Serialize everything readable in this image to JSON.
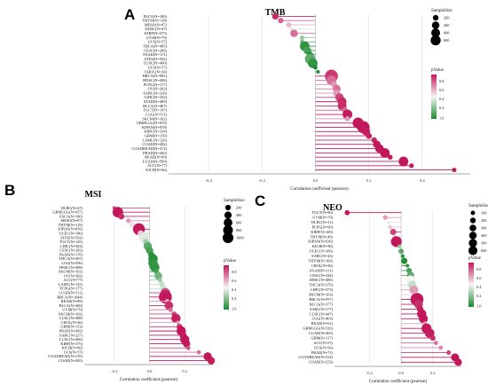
{
  "colors": {
    "low": "#1a8a2e",
    "mid": "#f4f4f4",
    "high": "#c2185b",
    "axis": "#555555",
    "grid": "#d8d8d8"
  },
  "chart_data": [
    {
      "letter": "A",
      "title": "TMB",
      "type": "scatter",
      "xlabel": "Correlation coefficient (pearson)",
      "xlim": [
        -0.55,
        0.58
      ],
      "xticks": [
        -0.4,
        -0.2,
        0.0,
        0.2,
        0.4
      ],
      "xtick_labels": [
        "-0.4",
        "-0.2",
        "0.0",
        "0.2",
        "0.4"
      ],
      "categories": [
        "ESCA(N=180)",
        "THYM(N=118)",
        "MESO(N=87)",
        "DLBC(N=47)",
        "KIRP(N=275)",
        "UVM(N=79)",
        "UCS(N=57)",
        "THCA(N=495)",
        "CESC(N=286)",
        "PAAD(N=171)",
        "STES(N=592)",
        "LUSC(N=490)",
        "UCS(N=57)",
        "CHOL(N=36)",
        "BRCA(N=981)",
        "HNSC(N=496)",
        "PCPG(N=177)",
        "OV(N=302)",
        "SARC(N=236)",
        "LIHC(N=352)",
        "STAD(N=409)",
        "BLCA(N=407)",
        "TGCT(N=147)",
        "LGG(N=511)",
        "SKCM(N=102)",
        "GBMLGG(N=670)",
        "KIPAN(N=878)",
        "KIRC(N=334)",
        "GBM(N=159)",
        "LAML(N=126)",
        "COAD(N=282)",
        "COADREAD(N=372)",
        "PRAD(N=492)",
        "READ(N=90)",
        "LUAD(N=509)",
        "ACC(N=77)",
        "KICH(N=66)"
      ],
      "values": [
        -0.15,
        -0.13,
        -0.1,
        -0.09,
        -0.08,
        -0.05,
        -0.05,
        -0.04,
        -0.03,
        -0.02,
        -0.02,
        -0.01,
        0.0,
        0.01,
        0.06,
        0.06,
        0.07,
        0.08,
        0.08,
        0.09,
        0.1,
        0.1,
        0.11,
        0.12,
        0.12,
        0.16,
        0.18,
        0.19,
        0.2,
        0.22,
        0.23,
        0.24,
        0.26,
        0.28,
        0.33,
        0.36,
        0.52
      ],
      "pvalues": [
        0.04,
        0.17,
        0.35,
        0.55,
        0.2,
        0.7,
        0.8,
        0.95,
        0.9,
        0.98,
        0.85,
        0.95,
        1.0,
        0.97,
        0.08,
        0.2,
        0.3,
        0.2,
        0.3,
        0.1,
        0.04,
        0.05,
        0.2,
        0.01,
        0.3,
        0.0,
        0.0,
        0.01,
        0.02,
        0.03,
        0.0,
        0.0,
        0.0,
        0.0,
        0.0,
        0.01,
        0.0
      ],
      "sizes": [
        180,
        118,
        87,
        47,
        275,
        79,
        57,
        495,
        286,
        171,
        592,
        490,
        57,
        36,
        981,
        496,
        177,
        302,
        236,
        352,
        409,
        407,
        147,
        511,
        102,
        670,
        878,
        334,
        159,
        126,
        282,
        372,
        492,
        90,
        509,
        77,
        66
      ],
      "legend_size_title": "SampleSize",
      "legend_sizes": [
        200,
        400,
        600,
        800
      ],
      "legend_p_title": "pValue",
      "legend_p_ticks": [
        "0.8",
        "0.6",
        "0.4",
        "0.2",
        "1.0"
      ]
    },
    {
      "letter": "B",
      "title": "MSI",
      "type": "scatter",
      "xlabel": "Correlation coefficient (pearson)",
      "xlim": [
        -0.37,
        0.36
      ],
      "xticks": [
        -0.2,
        0.0,
        0.2
      ],
      "xtick_labels": [
        "-0.2",
        "0.0",
        "0.2"
      ],
      "categories": [
        "DLBC(N=47)",
        "GBMLGG(N=657)",
        "ESCA(N=180)",
        "MESO(N=87)",
        "THYM(N=118)",
        "KIPAN(N=856)",
        "UCEC(N=180)",
        "STES(N=592)",
        "TGCT(N=145)",
        "LIHC(N=363)",
        "CESC(N=282)",
        "PAAD(N=176)",
        "THCA(N=497)",
        "LGG(N=506)",
        "HNSC(N=498)",
        "SKCM(N=101)",
        "OV(N=302)",
        "ACC(N=77)",
        "LAML(N=125)",
        "PCPG(N=177)",
        "LUAD(N=511)",
        "BRCA(N=1044)",
        "READ(N=89)",
        "BLCA(N=406)",
        "UVM(N=79)",
        "SKCM(N=102)",
        "LUSC(N=488)",
        "CHOL(N=36)",
        "GBM(N=153)",
        "PRAD(N=492)",
        "SARC(N=237)",
        "LUSC(N=466)",
        "KIRP(N=275)",
        "KICH(N=66)",
        "UCS(N=57)",
        "COADREAD(N=370)",
        "COAD(N=285)"
      ],
      "values": [
        -0.2,
        -0.18,
        -0.16,
        -0.12,
        -0.1,
        -0.06,
        -0.05,
        -0.03,
        -0.02,
        -0.01,
        0.0,
        0.01,
        0.02,
        0.02,
        0.03,
        0.04,
        0.05,
        0.06,
        0.07,
        0.08,
        0.09,
        0.09,
        0.1,
        0.11,
        0.12,
        0.14,
        0.15,
        0.16,
        0.17,
        0.18,
        0.19,
        0.2,
        0.21,
        0.22,
        0.28,
        0.33,
        0.35
      ],
      "pvalues": [
        0.15,
        0.0,
        0.05,
        0.3,
        0.45,
        0.0,
        0.4,
        0.55,
        0.7,
        0.85,
        0.9,
        0.95,
        0.98,
        0.95,
        0.95,
        0.9,
        0.8,
        0.7,
        0.6,
        0.6,
        0.1,
        0.0,
        0.3,
        0.05,
        0.2,
        0.1,
        0.02,
        0.3,
        0.05,
        0.0,
        0.02,
        0.0,
        0.01,
        0.15,
        0.2,
        0.0,
        0.01
      ],
      "sizes": [
        47,
        657,
        180,
        87,
        118,
        856,
        180,
        592,
        145,
        363,
        282,
        176,
        497,
        506,
        498,
        101,
        302,
        77,
        125,
        177,
        511,
        1044,
        89,
        406,
        79,
        102,
        488,
        36,
        153,
        492,
        237,
        466,
        275,
        66,
        57,
        370,
        285
      ],
      "legend_size_title": "SampleSize",
      "legend_sizes": [
        200,
        400,
        600,
        800,
        1000
      ],
      "legend_p_title": "pValue",
      "legend_p_ticks": [
        "0.8",
        "0.6",
        "0.4",
        "0.2",
        "1.0"
      ]
    },
    {
      "letter": "C",
      "title": "NEO",
      "type": "scatter",
      "xlabel": "Correlation coefficient (pearson)",
      "xlim": [
        -0.42,
        0.38
      ],
      "xticks": [
        -0.2,
        0.0,
        0.2
      ],
      "xtick_labels": [
        "-0.2",
        "0.0",
        "0.2"
      ],
      "categories": [
        "TGCT(N=96)",
        "UVM(N=79)",
        "DLBC(N=11)",
        "PCPG(N=60)",
        "KIRP(N=169)",
        "THYM(N=46)",
        "KIPAN(N=636)",
        "KICH(N=38)",
        "UCEC(N=106)",
        "SARC(N=43)",
        "THYM(N=166)",
        "CHOL(N=36)",
        "PAAD(N=111)",
        "CESC(N=244)",
        "HNSC(N=480)",
        "THCA(N=379)",
        "LIHC(N=373)",
        "SKCM(N=103)",
        "BRCA(N=957)",
        "BLCA(N=377)",
        "SARC(N=177)",
        "LUSC(N=447)",
        "LGG(N=403)",
        "READ(N=61)",
        "GBMLGG(N=520)",
        "LUAD(N=465)",
        "GBM(N=117)",
        "ACC(N=57)",
        "UCS(N=56)",
        "PRAD(N=71)",
        "COADREAD(N=314)",
        "COAD(N=253)"
      ],
      "values": [
        -0.34,
        -0.1,
        -0.08,
        -0.07,
        -0.05,
        -0.04,
        -0.03,
        -0.01,
        0.0,
        0.01,
        0.02,
        0.04,
        0.05,
        0.06,
        0.06,
        0.07,
        0.08,
        0.09,
        0.1,
        0.11,
        0.12,
        0.13,
        0.14,
        0.15,
        0.16,
        0.18,
        0.2,
        0.22,
        0.25,
        0.3,
        0.34,
        0.36
      ],
      "pvalues": [
        0.0,
        0.3,
        0.45,
        0.4,
        0.1,
        0.55,
        0.0,
        0.7,
        0.85,
        0.95,
        0.98,
        0.95,
        0.9,
        0.85,
        0.5,
        0.6,
        0.3,
        0.4,
        0.0,
        0.05,
        0.02,
        0.0,
        0.0,
        0.3,
        0.0,
        0.01,
        0.05,
        0.2,
        0.25,
        0.1,
        0.0,
        0.0
      ],
      "sizes": [
        96,
        79,
        11,
        60,
        169,
        46,
        636,
        38,
        106,
        43,
        166,
        36,
        111,
        244,
        480,
        379,
        373,
        103,
        957,
        377,
        177,
        447,
        403,
        61,
        520,
        465,
        117,
        57,
        56,
        71,
        314,
        253
      ],
      "legend_size_title": "SampleSize",
      "legend_sizes": [
        100,
        200,
        300,
        400,
        500,
        600
      ],
      "legend_p_title": "pValue",
      "legend_p_ticks": [
        "0.8",
        "0.6",
        "0.4",
        "0.2",
        "1.0"
      ]
    }
  ]
}
